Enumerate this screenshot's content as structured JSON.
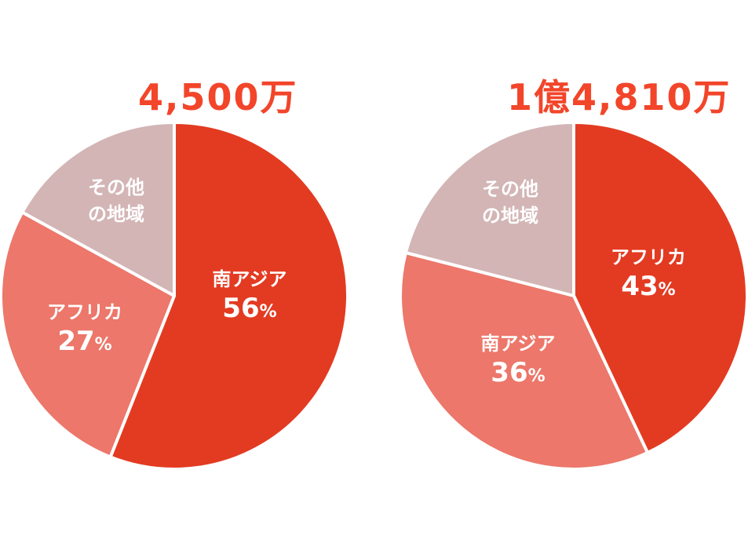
{
  "chart_data": [
    {
      "type": "pie",
      "title": "4,500万",
      "slices": [
        {
          "label": "南アジア",
          "value": 56,
          "display": "56",
          "color": "#e33b22"
        },
        {
          "label": "アフリカ",
          "value": 27,
          "display": "27",
          "color": "#ec776a"
        },
        {
          "label": "その他の地域",
          "label_lines": [
            "その他",
            "の地域"
          ],
          "value": 17,
          "color": "#d3b5b5"
        }
      ],
      "start_angle": "12 o'clock",
      "direction": "clockwise"
    },
    {
      "type": "pie",
      "title": "1億4,810万",
      "slices": [
        {
          "label": "アフリカ",
          "value": 43,
          "display": "43",
          "color": "#e33b22"
        },
        {
          "label": "南アジア",
          "value": 36,
          "display": "36",
          "color": "#ec776a"
        },
        {
          "label": "その他の地域",
          "label_lines": [
            "その他",
            "の地域"
          ],
          "value": 21,
          "color": "#d3b5b5"
        }
      ],
      "start_angle": "12 o'clock",
      "direction": "clockwise"
    }
  ],
  "percent_sign": "%"
}
